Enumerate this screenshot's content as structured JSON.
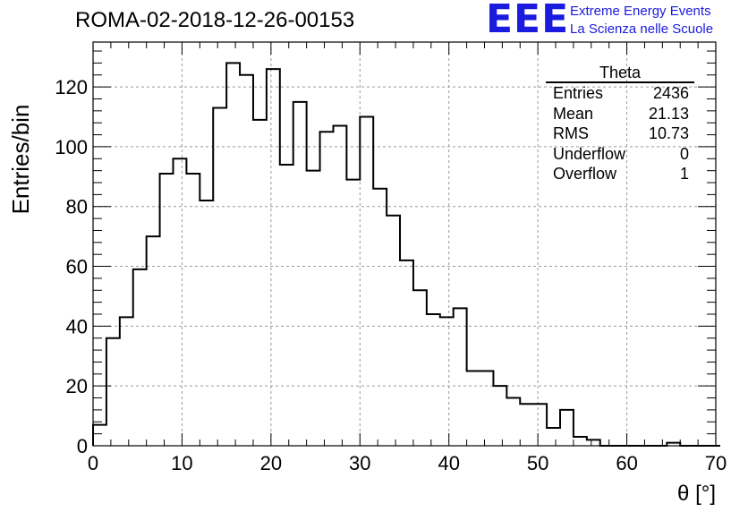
{
  "header": {
    "run_title": "ROMA-02-2018-12-26-00153",
    "logo_text": "EEE",
    "logo_line1": "Extreme Energy Events",
    "logo_line2": "La Scienza nelle Scuole",
    "logo_color": "#1b1bdd"
  },
  "stats": {
    "title": "Theta",
    "rows": [
      {
        "label": "Entries",
        "value": "2436"
      },
      {
        "label": "Mean",
        "value": "21.13"
      },
      {
        "label": "RMS",
        "value": "10.73"
      },
      {
        "label": "Underflow",
        "value": "0"
      },
      {
        "label": "Overflow",
        "value": "1"
      }
    ]
  },
  "chart_data": {
    "type": "histogram",
    "title": "ROMA-02-2018-12-26-00153",
    "xlabel": "θ [°]",
    "ylabel": "Entries/bin",
    "xlim": [
      0,
      70
    ],
    "ylim": [
      0,
      135
    ],
    "bin_width": 1.5,
    "x_ticks": [
      0,
      10,
      20,
      30,
      40,
      50,
      60,
      70
    ],
    "y_ticks": [
      0,
      20,
      40,
      60,
      80,
      100,
      120
    ],
    "grid": true,
    "line_color": "#000000",
    "bin_counts": [
      7,
      36,
      43,
      59,
      70,
      91,
      96,
      91,
      82,
      113,
      128,
      124,
      109,
      126,
      94,
      115,
      92,
      105,
      107,
      89,
      110,
      86,
      77,
      62,
      52,
      44,
      43,
      46,
      25,
      25,
      20,
      16,
      14,
      14,
      6,
      12,
      3,
      2,
      0,
      0,
      0,
      0,
      0,
      1,
      0,
      0,
      0
    ]
  }
}
